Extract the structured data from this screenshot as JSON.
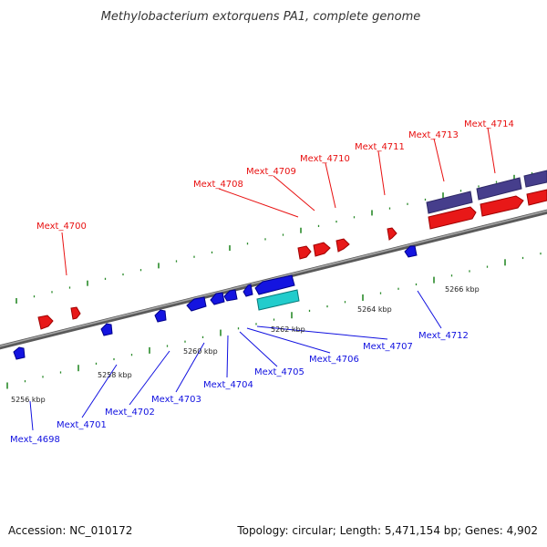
{
  "title": "Methylobacterium extorquens PA1, complete genome",
  "footer": {
    "accession": "Accession: NC_010172",
    "topology": "Topology: circular; Length: 5,471,154 bp; Genes: 4,902"
  },
  "colors": {
    "forward": "#e81010",
    "reverse": "#1010e0",
    "backbone": "#808080",
    "tick": "#2a8a2a",
    "rna": "#20c8c8",
    "cds_track": "#4a4090"
  },
  "scale": [
    "5256 kbp",
    "5258 kbp",
    "5260 kbp",
    "5262 kbp",
    "5264 kbp",
    "5266 kbp"
  ],
  "forward_genes": [
    "Mext_4700",
    "Mext_4708",
    "Mext_4709",
    "Mext_4710",
    "Mext_4711",
    "Mext_4713",
    "Mext_4714"
  ],
  "reverse_genes": [
    "Mext_4698",
    "Mext_4701",
    "Mext_4702",
    "Mext_4703",
    "Mext_4704",
    "Mext_4705",
    "Mext_4706",
    "Mext_4707",
    "Mext_4712"
  ]
}
